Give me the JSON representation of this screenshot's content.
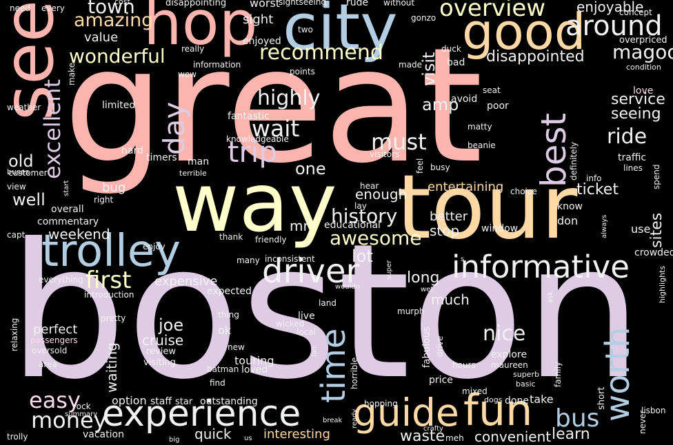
{
  "words": [
    "great",
    "boston",
    "tour",
    "way",
    "see",
    "trolley",
    "city",
    "hop",
    "good",
    "experience",
    "informative",
    "fun",
    "guide",
    "time",
    "worth",
    "best",
    "driver",
    "trip",
    "around",
    "overview",
    "recommend",
    "wonderful",
    "amazing",
    "town",
    "day",
    "excellent",
    "wait",
    "highly",
    "must",
    "ride",
    "bus",
    "money",
    "easy",
    "first",
    "awesome",
    "history",
    "nice",
    "visit",
    "magoo",
    "disappointed",
    "enjoyable",
    "amp",
    "service",
    "seeing",
    "love",
    "entertaining",
    "ticket",
    "learn",
    "convenient",
    "interesting",
    "quick",
    "waste",
    "cruise",
    "joe",
    "perfect",
    "waiting",
    "lot",
    "long",
    "much",
    "expensive",
    "enough",
    "one",
    "old",
    "well",
    "weekend",
    "commentary",
    "overall",
    "mr",
    "educational",
    "stop",
    "better",
    "window",
    "don",
    "know",
    "sites",
    "crowded",
    "use",
    "fantastic",
    "limited",
    "value",
    "sight",
    "enjoyed",
    "worst",
    "sightseeing",
    "rude",
    "without",
    "gonzo",
    "concept",
    "overpriced",
    "condition",
    "really",
    "information",
    "two",
    "made",
    "points",
    "bad",
    "duck",
    "seat",
    "poor",
    "avoid",
    "matty",
    "beanie",
    "knowledgeable",
    "visitors",
    "busy",
    "feel",
    "definitely",
    "info",
    "highlights",
    "traffic",
    "lines",
    "spend",
    "choice",
    "hear",
    "lay",
    "friendly",
    "thank",
    "many",
    "inconsistent",
    "capt",
    "enjoy",
    "everything",
    "introduction",
    "expected",
    "relaxing",
    "pretty",
    "passengers",
    "oversold",
    "area",
    "customer",
    "view",
    "buses",
    "hard",
    "timers",
    "man",
    "terrible",
    "bug",
    "right",
    "start",
    "weather",
    "make",
    "need",
    "every",
    "disappointing",
    "cost",
    "land",
    "thing",
    "wicked",
    "local",
    "live",
    "review",
    "visiting",
    "new",
    "batman",
    "find",
    "loved",
    "touring",
    "ok",
    "fabulous",
    "drive",
    "explore",
    "maureen",
    "hours",
    "superb",
    "basic",
    "family",
    "price",
    "mixed",
    "dogs",
    "horrible",
    "hopping",
    "star",
    "outstanding",
    "staff",
    "option",
    "rock",
    "summary",
    "trolly",
    "vacation",
    "big",
    "us",
    "break",
    "ready",
    "crafty",
    "meh",
    "done",
    "take",
    "short",
    "lisbon",
    "never",
    "murph",
    "fall",
    "wouldn",
    "super",
    "wow",
    "always",
    "s",
    "wet",
    "ask"
  ],
  "colors": {
    "background": "#000000",
    "pink": "#fbb4ae",
    "blue": "#b3cde3",
    "green": "#ccebc5",
    "lavender": "#decbe4",
    "peach": "#fed9a6",
    "yellow": "#ffffcc",
    "tan": "#e5d8bd",
    "rose": "#fddaec",
    "white": "#f2f2f2"
  }
}
